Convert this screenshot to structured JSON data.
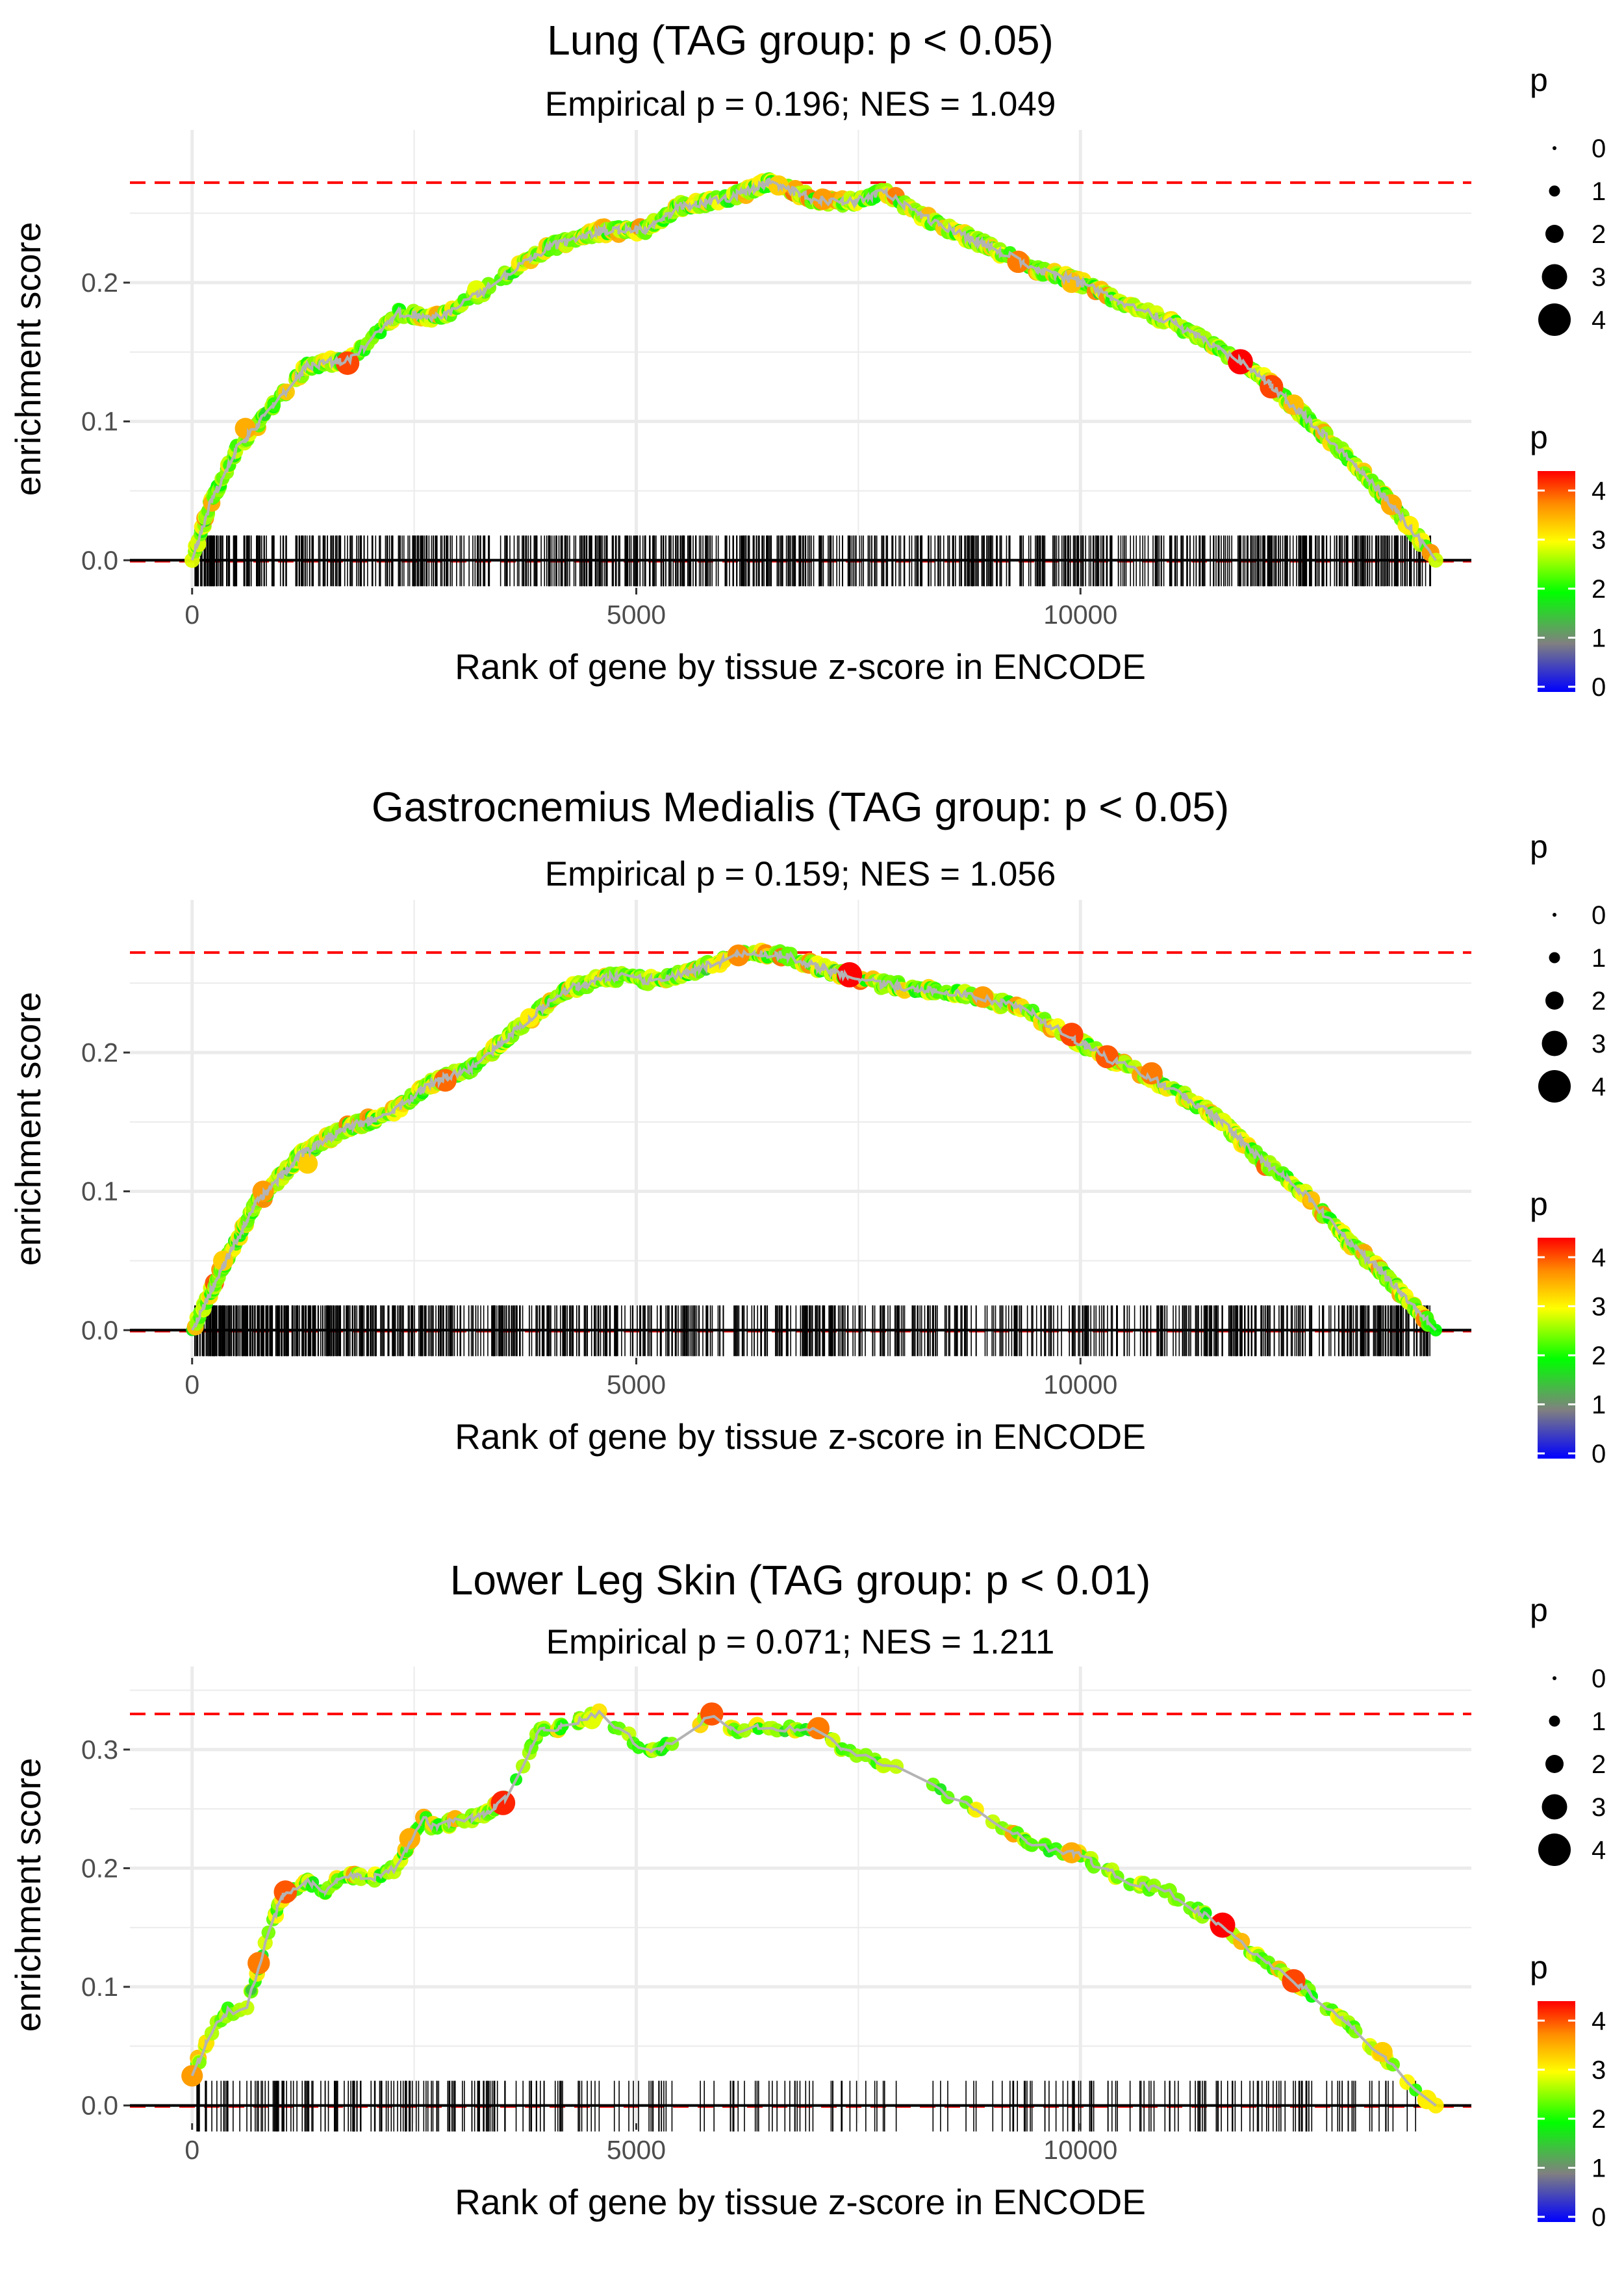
{
  "figure": {
    "type": "GSEA-style enrichment score plots (running enrichment score vs gene rank)",
    "colors": {
      "background": "#ffffff",
      "grid": "#ebebeb",
      "zero_line": "#000000",
      "max_line": "#ff0000",
      "curve": "#b3b3b3",
      "ticks": "#000000",
      "gradient": [
        "#0000ff",
        "#808080",
        "#00ff00",
        "#ffff00",
        "#ff8c00",
        "#ff0000"
      ]
    }
  },
  "chart_data": [
    {
      "type": "line",
      "title": "Lung (TAG group: p < 0.05)",
      "subtitle": "Empirical p = 0.196; NES = 1.049",
      "xlabel": "Rank of gene by tissue z-score in ENCODE",
      "ylabel": "enrichment score",
      "xlim": [
        -700,
        14400
      ],
      "ylim": [
        -0.02,
        0.31
      ],
      "x_ticks": [
        0,
        5000,
        10000
      ],
      "x_tick_labels": [
        "0",
        "5000",
        "10000"
      ],
      "y_ticks": [
        0.0,
        0.1,
        0.2
      ],
      "y_tick_labels": [
        "0.0",
        "0.1",
        "0.2"
      ],
      "max_es": 0.272,
      "curve_anchors": [
        {
          "x": 0,
          "y": 0.0
        },
        {
          "x": 200,
          "y": 0.04
        },
        {
          "x": 500,
          "y": 0.08
        },
        {
          "x": 900,
          "y": 0.11
        },
        {
          "x": 1300,
          "y": 0.14
        },
        {
          "x": 1800,
          "y": 0.145
        },
        {
          "x": 2300,
          "y": 0.178
        },
        {
          "x": 2800,
          "y": 0.175
        },
        {
          "x": 3300,
          "y": 0.195
        },
        {
          "x": 4000,
          "y": 0.225
        },
        {
          "x": 4600,
          "y": 0.237
        },
        {
          "x": 5100,
          "y": 0.238
        },
        {
          "x": 5500,
          "y": 0.255
        },
        {
          "x": 6000,
          "y": 0.26
        },
        {
          "x": 6500,
          "y": 0.272
        },
        {
          "x": 7000,
          "y": 0.26
        },
        {
          "x": 7400,
          "y": 0.258
        },
        {
          "x": 7800,
          "y": 0.265
        },
        {
          "x": 8300,
          "y": 0.245
        },
        {
          "x": 9000,
          "y": 0.225
        },
        {
          "x": 9500,
          "y": 0.21
        },
        {
          "x": 10000,
          "y": 0.2
        },
        {
          "x": 10500,
          "y": 0.185
        },
        {
          "x": 11000,
          "y": 0.172
        },
        {
          "x": 11500,
          "y": 0.155
        },
        {
          "x": 12000,
          "y": 0.135
        },
        {
          "x": 12500,
          "y": 0.105
        },
        {
          "x": 13000,
          "y": 0.075
        },
        {
          "x": 13500,
          "y": 0.04
        },
        {
          "x": 14000,
          "y": 0.0
        }
      ],
      "highlight_points": [
        {
          "x": 600,
          "y": 0.095,
          "p": 3.2
        },
        {
          "x": 1750,
          "y": 0.142,
          "p": 3.8
        },
        {
          "x": 3200,
          "y": 0.195,
          "p": 2.6
        },
        {
          "x": 6600,
          "y": 0.27,
          "p": 3.0
        },
        {
          "x": 7100,
          "y": 0.26,
          "p": 3.3
        },
        {
          "x": 9300,
          "y": 0.215,
          "p": 3.5
        },
        {
          "x": 9900,
          "y": 0.2,
          "p": 3.1
        },
        {
          "x": 11800,
          "y": 0.143,
          "p": 4.2
        },
        {
          "x": 12150,
          "y": 0.125,
          "p": 3.8
        },
        {
          "x": 12400,
          "y": 0.112,
          "p": 3.1
        },
        {
          "x": 13500,
          "y": 0.04,
          "p": 3.2
        },
        {
          "x": 13700,
          "y": 0.025,
          "p": 2.8
        }
      ],
      "n_hits": 900,
      "hit_density": [
        {
          "x": 0,
          "w": 3.0
        },
        {
          "x": 800,
          "w": 1.3
        },
        {
          "x": 2000,
          "w": 1.0
        },
        {
          "x": 3500,
          "w": 1.0
        },
        {
          "x": 5000,
          "w": 1.5
        },
        {
          "x": 6500,
          "w": 1.3
        },
        {
          "x": 8000,
          "w": 0.8
        },
        {
          "x": 10000,
          "w": 1.0
        },
        {
          "x": 12000,
          "w": 1.0
        },
        {
          "x": 13600,
          "w": 1.5
        },
        {
          "x": 14000,
          "w": 0.5
        }
      ],
      "seed": 11,
      "legend_size": {
        "title": "p",
        "labels": [
          "0",
          "1",
          "2",
          "3",
          "4"
        ]
      },
      "legend_color": {
        "title": "p",
        "labels": [
          "4",
          "3",
          "2",
          "1",
          "0"
        ]
      }
    },
    {
      "type": "line",
      "title": "Gastrocnemius Medialis (TAG group: p < 0.05)",
      "subtitle": "Empirical p = 0.159; NES = 1.056",
      "xlabel": "Rank of gene by tissue z-score in ENCODE",
      "ylabel": "enrichment score",
      "xlim": [
        -700,
        14400
      ],
      "ylim": [
        -0.02,
        0.31
      ],
      "x_ticks": [
        0,
        5000,
        10000
      ],
      "x_tick_labels": [
        "0",
        "5000",
        "10000"
      ],
      "y_ticks": [
        0.0,
        0.1,
        0.2
      ],
      "y_tick_labels": [
        "0.0",
        "0.1",
        "0.2"
      ],
      "max_es": 0.272,
      "curve_anchors": [
        {
          "x": 0,
          "y": 0.0
        },
        {
          "x": 300,
          "y": 0.04
        },
        {
          "x": 700,
          "y": 0.09
        },
        {
          "x": 1200,
          "y": 0.125
        },
        {
          "x": 1700,
          "y": 0.145
        },
        {
          "x": 2200,
          "y": 0.155
        },
        {
          "x": 2700,
          "y": 0.178
        },
        {
          "x": 3200,
          "y": 0.19
        },
        {
          "x": 3700,
          "y": 0.22
        },
        {
          "x": 4200,
          "y": 0.245
        },
        {
          "x": 4700,
          "y": 0.255
        },
        {
          "x": 5200,
          "y": 0.252
        },
        {
          "x": 5700,
          "y": 0.26
        },
        {
          "x": 6200,
          "y": 0.272
        },
        {
          "x": 6700,
          "y": 0.27
        },
        {
          "x": 7200,
          "y": 0.258
        },
        {
          "x": 7700,
          "y": 0.25
        },
        {
          "x": 8300,
          "y": 0.245
        },
        {
          "x": 8900,
          "y": 0.24
        },
        {
          "x": 9400,
          "y": 0.23
        },
        {
          "x": 9900,
          "y": 0.21
        },
        {
          "x": 10500,
          "y": 0.19
        },
        {
          "x": 11000,
          "y": 0.175
        },
        {
          "x": 11500,
          "y": 0.155
        },
        {
          "x": 12000,
          "y": 0.125
        },
        {
          "x": 12500,
          "y": 0.1
        },
        {
          "x": 13000,
          "y": 0.065
        },
        {
          "x": 13500,
          "y": 0.035
        },
        {
          "x": 14000,
          "y": 0.0
        }
      ],
      "highlight_points": [
        {
          "x": 350,
          "y": 0.05,
          "p": 3.0
        },
        {
          "x": 800,
          "y": 0.1,
          "p": 3.3
        },
        {
          "x": 1300,
          "y": 0.12,
          "p": 3.0
        },
        {
          "x": 2850,
          "y": 0.18,
          "p": 3.6
        },
        {
          "x": 3800,
          "y": 0.225,
          "p": 2.8
        },
        {
          "x": 6150,
          "y": 0.27,
          "p": 3.4
        },
        {
          "x": 7400,
          "y": 0.256,
          "p": 4.2
        },
        {
          "x": 8900,
          "y": 0.24,
          "p": 3.3
        },
        {
          "x": 9900,
          "y": 0.213,
          "p": 3.8
        },
        {
          "x": 10300,
          "y": 0.197,
          "p": 3.7
        },
        {
          "x": 10800,
          "y": 0.185,
          "p": 3.5
        },
        {
          "x": 11600,
          "y": 0.15,
          "p": 2.6
        }
      ],
      "n_hits": 950,
      "hit_density": [
        {
          "x": 0,
          "w": 2.5
        },
        {
          "x": 1000,
          "w": 1.8
        },
        {
          "x": 3000,
          "w": 1.2
        },
        {
          "x": 5000,
          "w": 1.0
        },
        {
          "x": 7000,
          "w": 1.0
        },
        {
          "x": 9000,
          "w": 0.9
        },
        {
          "x": 11000,
          "w": 0.8
        },
        {
          "x": 12500,
          "w": 1.0
        },
        {
          "x": 13600,
          "w": 1.6
        },
        {
          "x": 14000,
          "w": 0.6
        }
      ],
      "seed": 27,
      "legend_size": {
        "title": "p",
        "labels": [
          "0",
          "1",
          "2",
          "3",
          "4"
        ]
      },
      "legend_color": {
        "title": "p",
        "labels": [
          "4",
          "3",
          "2",
          "1",
          "0"
        ]
      }
    },
    {
      "type": "line",
      "title": "Lower Leg Skin (TAG group: p < 0.01)",
      "subtitle": "Empirical p = 0.071; NES = 1.211",
      "xlabel": "Rank of gene by tissue z-score in ENCODE",
      "ylabel": "enrichment score",
      "xlim": [
        -700,
        14400
      ],
      "ylim": [
        -0.015,
        0.37
      ],
      "x_ticks": [
        0,
        5000,
        10000
      ],
      "x_tick_labels": [
        "0",
        "5000",
        "10000"
      ],
      "y_ticks": [
        0.0,
        0.1,
        0.2,
        0.3
      ],
      "y_tick_labels": [
        "0.0",
        "0.1",
        "0.2",
        "0.3"
      ],
      "max_es": 0.33,
      "curve_anchors": [
        {
          "x": 0,
          "y": 0.025
        },
        {
          "x": 200,
          "y": 0.06
        },
        {
          "x": 400,
          "y": 0.08
        },
        {
          "x": 600,
          "y": 0.08
        },
        {
          "x": 800,
          "y": 0.13
        },
        {
          "x": 1000,
          "y": 0.175
        },
        {
          "x": 1300,
          "y": 0.19
        },
        {
          "x": 1500,
          "y": 0.18
        },
        {
          "x": 1700,
          "y": 0.195
        },
        {
          "x": 2000,
          "y": 0.19
        },
        {
          "x": 2300,
          "y": 0.2
        },
        {
          "x": 2600,
          "y": 0.245
        },
        {
          "x": 2700,
          "y": 0.235
        },
        {
          "x": 3000,
          "y": 0.24
        },
        {
          "x": 3300,
          "y": 0.245
        },
        {
          "x": 3600,
          "y": 0.265
        },
        {
          "x": 3900,
          "y": 0.315
        },
        {
          "x": 4200,
          "y": 0.32
        },
        {
          "x": 4600,
          "y": 0.33
        },
        {
          "x": 5100,
          "y": 0.3
        },
        {
          "x": 5500,
          "y": 0.305
        },
        {
          "x": 5800,
          "y": 0.33
        },
        {
          "x": 6100,
          "y": 0.315
        },
        {
          "x": 6500,
          "y": 0.32
        },
        {
          "x": 7000,
          "y": 0.315
        },
        {
          "x": 7500,
          "y": 0.295
        },
        {
          "x": 8200,
          "y": 0.275
        },
        {
          "x": 8800,
          "y": 0.25
        },
        {
          "x": 9500,
          "y": 0.22
        },
        {
          "x": 10000,
          "y": 0.21
        },
        {
          "x": 10500,
          "y": 0.19
        },
        {
          "x": 11000,
          "y": 0.18
        },
        {
          "x": 11500,
          "y": 0.155
        },
        {
          "x": 12000,
          "y": 0.125
        },
        {
          "x": 12500,
          "y": 0.1
        },
        {
          "x": 13000,
          "y": 0.07
        },
        {
          "x": 13500,
          "y": 0.035
        },
        {
          "x": 14000,
          "y": 0.0
        }
      ],
      "highlight_points": [
        {
          "x": 0,
          "y": 0.025,
          "p": 3.3
        },
        {
          "x": 750,
          "y": 0.12,
          "p": 3.5
        },
        {
          "x": 1050,
          "y": 0.18,
          "p": 3.7
        },
        {
          "x": 2450,
          "y": 0.225,
          "p": 3.2
        },
        {
          "x": 3500,
          "y": 0.255,
          "p": 4.0
        },
        {
          "x": 4500,
          "y": 0.325,
          "p": 2.6
        },
        {
          "x": 5850,
          "y": 0.33,
          "p": 3.7
        },
        {
          "x": 7050,
          "y": 0.318,
          "p": 3.5
        },
        {
          "x": 9900,
          "y": 0.213,
          "p": 3.2
        },
        {
          "x": 11600,
          "y": 0.152,
          "p": 4.2
        },
        {
          "x": 12400,
          "y": 0.105,
          "p": 3.8
        },
        {
          "x": 13400,
          "y": 0.045,
          "p": 3.0
        },
        {
          "x": 13900,
          "y": 0.005,
          "p": 2.8
        }
      ],
      "n_hits": 330,
      "hit_density": [
        {
          "x": 0,
          "w": 2.0
        },
        {
          "x": 2000,
          "w": 1.6
        },
        {
          "x": 4000,
          "w": 1.8
        },
        {
          "x": 4700,
          "w": 0.0
        },
        {
          "x": 5000,
          "w": 1.0
        },
        {
          "x": 7000,
          "w": 1.0
        },
        {
          "x": 8000,
          "w": 0.7
        },
        {
          "x": 9500,
          "w": 0.8
        },
        {
          "x": 11000,
          "w": 1.2
        },
        {
          "x": 12500,
          "w": 0.9
        },
        {
          "x": 13500,
          "w": 0.9
        },
        {
          "x": 14000,
          "w": 0.5
        }
      ],
      "seed": 53,
      "legend_size": {
        "title": "p",
        "labels": [
          "0",
          "1",
          "2",
          "3",
          "4"
        ]
      },
      "legend_color": {
        "title": "p",
        "labels": [
          "4",
          "3",
          "2",
          "1",
          "0"
        ]
      }
    }
  ]
}
